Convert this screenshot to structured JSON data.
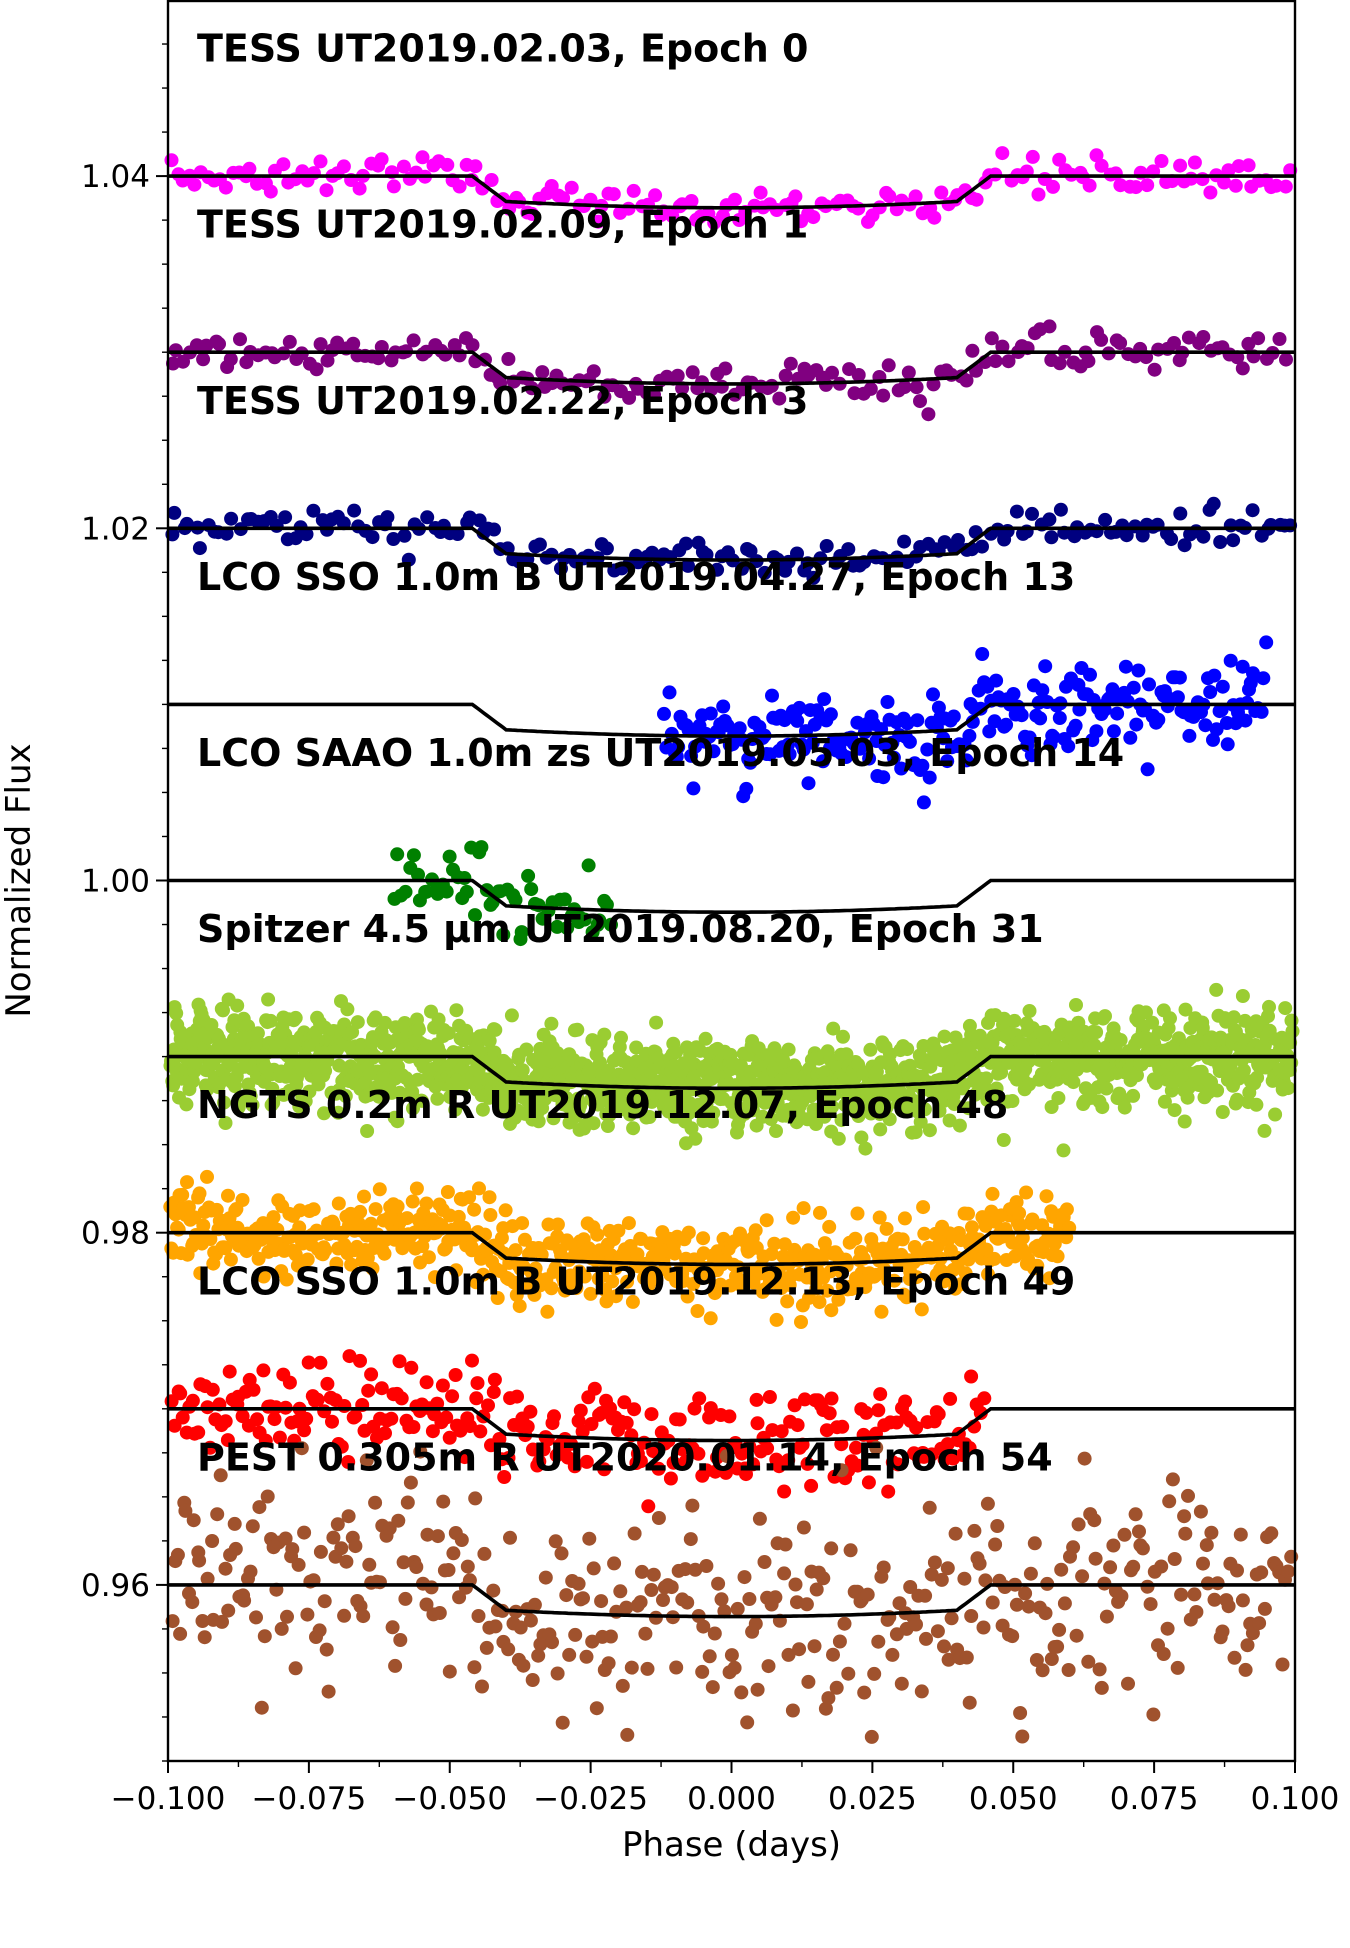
{
  "chart_data": {
    "type": "scatter",
    "xlabel": "Phase (days)",
    "ylabel": "Normalized Flux",
    "xlim": [
      -0.1,
      0.1
    ],
    "ylim": [
      0.95,
      1.05
    ],
    "x_ticks": [
      -0.1,
      -0.075,
      -0.05,
      -0.025,
      0.0,
      0.025,
      0.05,
      0.075,
      0.1
    ],
    "x_tick_labels": [
      "−0.100",
      "−0.075",
      "−0.050",
      "−0.025",
      "0.000",
      "0.025",
      "0.050",
      "0.075",
      "0.100"
    ],
    "y_ticks": [
      0.96,
      0.98,
      1.0,
      1.02,
      1.04
    ],
    "y_tick_labels": [
      "0.96",
      "0.98",
      "1.00",
      "1.02",
      "1.04"
    ],
    "grid": false,
    "transit_model": {
      "depth": 0.0018,
      "ingress_start": -0.046,
      "ingress_end": -0.04,
      "egress_start": 0.04,
      "egress_end": 0.046
    },
    "series": [
      {
        "name": "TESS UT2019.02.03, Epoch 0",
        "baseline": 1.04,
        "color": "#ff00ff",
        "x_range": [
          -0.1,
          0.1
        ],
        "scatter": 0.0005,
        "count": 180
      },
      {
        "name": "TESS UT2019.02.09, Epoch 1",
        "baseline": 1.03,
        "color": "#800080",
        "x_range": [
          -0.1,
          0.1
        ],
        "scatter": 0.0005,
        "count": 180
      },
      {
        "name": "TESS UT2019.02.22, Epoch 3",
        "baseline": 1.02,
        "color": "#000080",
        "x_range": [
          -0.1,
          0.1
        ],
        "scatter": 0.0005,
        "count": 180
      },
      {
        "name": "LCO SSO 1.0m B UT2019.04.27, Epoch 13",
        "baseline": 1.01,
        "color": "#0000ff",
        "x_range": [
          -0.012,
          0.095
        ],
        "scatter": 0.0012,
        "count": 260
      },
      {
        "name": "LCO SAAO 1.0m zs UT2019.05.03, Epoch 14",
        "baseline": 1.0,
        "color": "#008000",
        "x_range": [
          -0.06,
          -0.021
        ],
        "scatter": 0.0008,
        "count": 60
      },
      {
        "name": "Spitzer 4.5 μm UT2019.08.20, Epoch 31",
        "baseline": 0.99,
        "color": "#9acd32",
        "x_range": [
          -0.1,
          0.1
        ],
        "scatter": 0.0013,
        "count": 1600
      },
      {
        "name": "NGTS 0.2m R UT2019.12.07, Epoch 48",
        "baseline": 0.98,
        "color": "#ffa500",
        "x_range": [
          -0.1,
          0.06
        ],
        "scatter": 0.0012,
        "count": 650
      },
      {
        "name": "LCO SSO 1.0m B UT2019.12.13, Epoch 49",
        "baseline": 0.97,
        "color": "#ff0000",
        "x_range": [
          -0.1,
          0.045
        ],
        "scatter": 0.0015,
        "count": 280
      },
      {
        "name": "PEST 0.305m R UT2020.01.14, Epoch 54",
        "baseline": 0.96,
        "color": "#a0522d",
        "x_range": [
          -0.1,
          0.1
        ],
        "scatter": 0.0028,
        "count": 400
      }
    ]
  }
}
